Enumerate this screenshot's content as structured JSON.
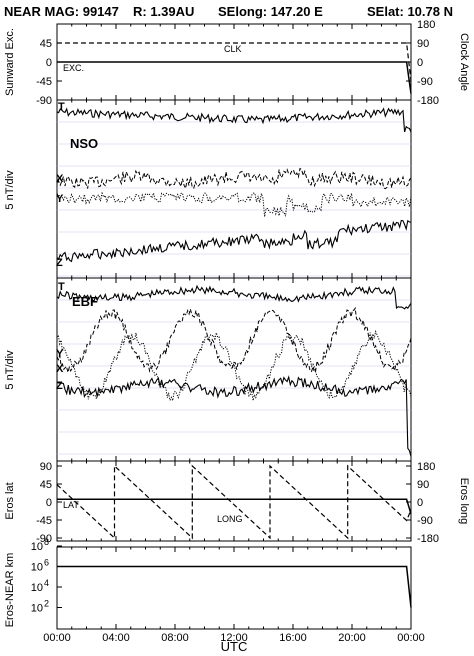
{
  "header": {
    "title_left": "NEAR MAG: 99147",
    "title_r": "R: 1.39AU",
    "title_selong": "SElong:  147.20 E",
    "title_selat": "SElat:   10.78 N"
  },
  "x_axis": {
    "label": "UTC",
    "ticks": [
      "00:00",
      "04:00",
      "08:00",
      "12:00",
      "16:00",
      "20:00",
      "00:00"
    ]
  },
  "chart_data": [
    {
      "type": "line",
      "panel": "sunward-clock",
      "ylabel_left": "Sunward Exc.",
      "ylabel_right": "Clock Angle",
      "yticks_left": [
        "45",
        "0",
        "-45",
        "-90"
      ],
      "yticks_right": [
        "180",
        "90",
        "0",
        "-90",
        "-180"
      ],
      "ylim_left": [
        -90,
        90
      ],
      "ylim_right": [
        -180,
        180
      ],
      "annotations": [
        "CLK",
        "EXC."
      ],
      "series": [
        {
          "name": "CLK",
          "style": "dashed",
          "x_hours": [
            0,
            23.7,
            24
          ],
          "values": [
            45,
            45,
            -45
          ]
        },
        {
          "name": "EXC.",
          "style": "solid",
          "x_hours": [
            0,
            23.7,
            24
          ],
          "values": [
            0,
            0,
            -75
          ]
        }
      ]
    },
    {
      "type": "line",
      "panel": "NSO",
      "label": "NSO",
      "ylabel_left": "5 nT/div",
      "grid": true,
      "series": [
        {
          "name": "T",
          "style": "solid"
        },
        {
          "name": "X",
          "style": "dashed"
        },
        {
          "name": "Y",
          "style": "dotted"
        },
        {
          "name": "Z",
          "style": "solid"
        }
      ]
    },
    {
      "type": "line",
      "panel": "EBF",
      "label": "EBF",
      "ylabel_left": "5 nT/div",
      "grid": true,
      "series": [
        {
          "name": "T",
          "style": "solid"
        },
        {
          "name": "Y",
          "style": "dotted"
        },
        {
          "name": "X",
          "style": "dashed"
        },
        {
          "name": "Z",
          "style": "solid"
        }
      ]
    },
    {
      "type": "line",
      "panel": "eros-lat-long",
      "ylabel_left": "Eros lat",
      "ylabel_right": "Eros long",
      "yticks_left": [
        "90",
        "45",
        "0",
        "-45",
        "-90"
      ],
      "yticks_right": [
        "180",
        "90",
        "0",
        "-90",
        "-180"
      ],
      "ylim_left": [
        -90,
        90
      ],
      "ylim_right": [
        -180,
        180
      ],
      "annotations": [
        "LAT",
        "LONG"
      ],
      "series": [
        {
          "name": "LAT",
          "style": "solid",
          "x_hours": [
            0,
            23.7,
            24
          ],
          "values": [
            7,
            7,
            -30
          ]
        },
        {
          "name": "LONG",
          "style": "dashed",
          "period_hours": 5.27,
          "first_wrap_hours": 3.9,
          "range": [
            -180,
            180
          ]
        }
      ]
    },
    {
      "type": "line",
      "panel": "eros-near-distance",
      "ylabel_left": "Eros-NEAR km",
      "yscale": "log",
      "yticks_left": [
        "10^8",
        "10^6",
        "10^4",
        "10^2"
      ],
      "ylim_left": [
        1,
        100000000
      ],
      "series": [
        {
          "name": "distance",
          "style": "solid",
          "x_hours": [
            0,
            23.7,
            24
          ],
          "values": [
            1000000,
            1000000,
            100
          ]
        }
      ]
    }
  ]
}
